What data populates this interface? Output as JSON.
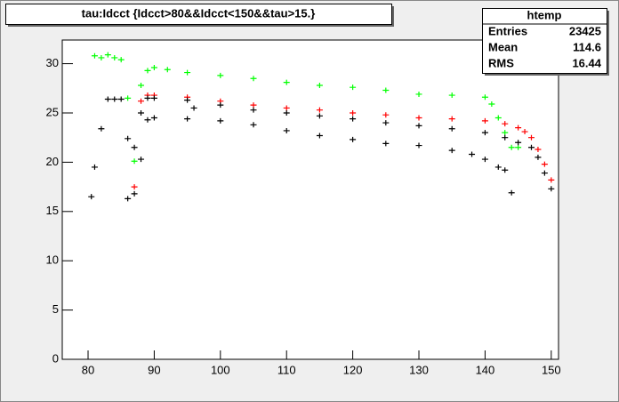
{
  "chart_data": {
    "type": "scatter",
    "title": "tau:Idcct {Idcct>80&&Idcct<150&&tau>15.}",
    "stats": {
      "title": "htemp",
      "rows": [
        [
          "Entries",
          "23425"
        ],
        [
          "Mean",
          "114.6"
        ],
        [
          "RMS",
          "16.44"
        ]
      ]
    },
    "xlim": [
      76.1,
      151.1
    ],
    "xticks": [
      80,
      90,
      100,
      110,
      120,
      130,
      140,
      150
    ],
    "ylim": [
      0,
      32.4
    ],
    "yticks": [
      0,
      5,
      10,
      15,
      20,
      25,
      30
    ],
    "series": [
      {
        "color": "#00ff00",
        "x": [
          81,
          82,
          83,
          84,
          85,
          86,
          87,
          88,
          89,
          90,
          92,
          95,
          100,
          105,
          110,
          115,
          120,
          125,
          130,
          135,
          140,
          141,
          142,
          143,
          144,
          145
        ],
        "values": [
          30.8,
          30.6,
          30.9,
          30.6,
          30.4,
          26.5,
          20.1,
          27.8,
          29.3,
          29.6,
          29.4,
          29.1,
          28.8,
          28.5,
          28.1,
          27.8,
          27.6,
          27.3,
          26.9,
          26.8,
          26.6,
          25.9,
          24.5,
          23.0,
          21.5,
          21.5
        ]
      },
      {
        "color": "#ff0000",
        "x": [
          87,
          88,
          89,
          90,
          95,
          100,
          105,
          110,
          115,
          120,
          125,
          130,
          135,
          140,
          143,
          145,
          146,
          147,
          148,
          149,
          150
        ],
        "values": [
          17.5,
          26.2,
          26.8,
          26.8,
          26.6,
          26.2,
          25.8,
          25.5,
          25.3,
          25.0,
          24.8,
          24.5,
          24.4,
          24.2,
          23.9,
          23.5,
          23.1,
          22.5,
          21.3,
          19.8,
          18.2
        ]
      },
      {
        "color": "#000000",
        "x": [
          81,
          82,
          83,
          84,
          85,
          86,
          87,
          88,
          89,
          90,
          95,
          100,
          105,
          110,
          115,
          120,
          125,
          130,
          135,
          140,
          143,
          145,
          147,
          148,
          149,
          150
        ],
        "values": [
          19.5,
          23.4,
          26.4,
          26.4,
          26.4,
          22.4,
          21.5,
          25.0,
          26.5,
          26.5,
          26.3,
          25.8,
          25.3,
          25.0,
          24.7,
          24.4,
          24.0,
          23.7,
          23.4,
          23.0,
          22.5,
          22.0,
          21.5,
          20.5,
          18.9,
          17.3
        ]
      },
      {
        "color": "#000000",
        "x": [
          80.5,
          86,
          87,
          88,
          89,
          90,
          95,
          96,
          100,
          105,
          110,
          115,
          120,
          125,
          130,
          135,
          138,
          140,
          142,
          143,
          144
        ],
        "values": [
          16.5,
          16.3,
          16.8,
          20.3,
          24.3,
          24.5,
          24.4,
          25.5,
          24.2,
          23.8,
          23.2,
          22.7,
          22.3,
          21.9,
          21.7,
          21.2,
          20.8,
          20.3,
          19.5,
          19.2,
          16.9
        ]
      }
    ]
  }
}
